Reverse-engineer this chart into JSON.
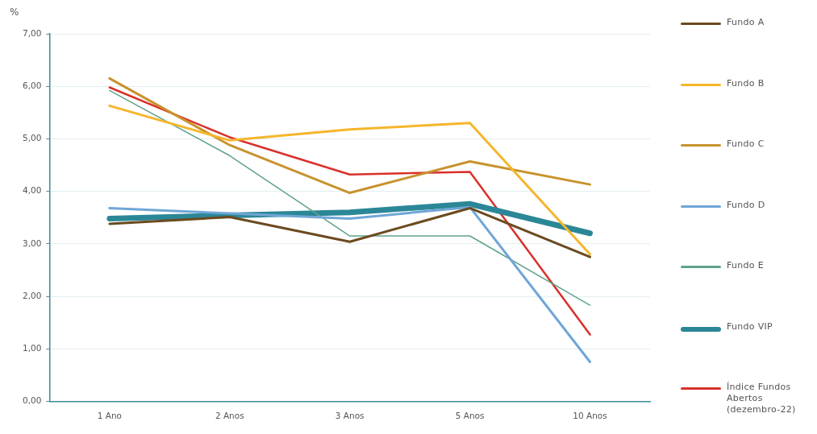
{
  "chart_data": {
    "type": "line",
    "ylabel": "%",
    "categories": [
      "1 Ano",
      "2 Anos",
      "3 Anos",
      "5 Anos",
      "10 Anos"
    ],
    "series": [
      {
        "name": "Fundo A",
        "color": "#6b4a1e",
        "values": [
          3.38,
          3.51,
          3.04,
          3.68,
          2.75
        ]
      },
      {
        "name": "Fundo B",
        "color": "#f5b62c",
        "values": [
          5.63,
          4.97,
          5.18,
          5.3,
          2.8
        ]
      },
      {
        "name": "Fundo C",
        "color": "#c8922e",
        "values": [
          6.15,
          4.88,
          3.97,
          4.57,
          4.13
        ]
      },
      {
        "name": "Fundo D",
        "color": "#6fa6d6",
        "values": [
          3.68,
          3.58,
          3.48,
          3.7,
          0.75
        ]
      },
      {
        "name": "Fundo E",
        "color": "#5fa38a",
        "values": [
          5.92,
          4.68,
          3.15,
          3.15,
          1.83
        ]
      },
      {
        "name": "Fundo VIP",
        "color": "#2b8797",
        "values": [
          3.48,
          3.54,
          3.6,
          3.76,
          3.2
        ]
      },
      {
        "name": "Índice Fundos Abertos (dezembro-22)",
        "color": "#d9302a",
        "values": [
          5.98,
          5.03,
          4.32,
          4.37,
          1.27
        ]
      }
    ],
    "ylim": [
      0,
      7
    ],
    "yticks": [
      {
        "value": 0,
        "label": "0,00"
      },
      {
        "value": 1,
        "label": "1,00"
      },
      {
        "value": 2,
        "label": "2,00"
      },
      {
        "value": 3,
        "label": "3,00"
      },
      {
        "value": 4,
        "label": "4,00"
      },
      {
        "value": 5,
        "label": "5,00"
      },
      {
        "value": 6,
        "label": "6,00"
      },
      {
        "value": 7,
        "label": "7,00"
      }
    ],
    "grid": "y",
    "legend": "right",
    "marker": "none",
    "line_style": "solid"
  }
}
